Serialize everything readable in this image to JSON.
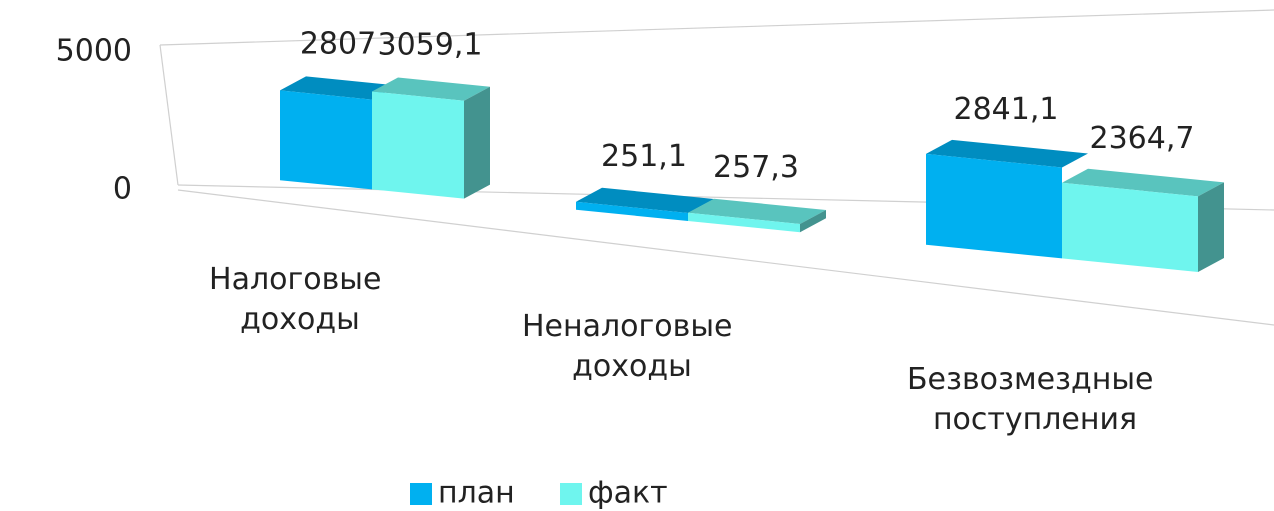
{
  "chart_data": {
    "type": "bar3d",
    "categories": [
      "Налоговые доходы",
      "Неналоговые доходы",
      "Безвозмездные поступления"
    ],
    "series": [
      {
        "name": "план",
        "color": "#00b0f0",
        "values": [
          2807,
          251.1,
          2841.1
        ],
        "value_labels": [
          "2807",
          "251,1",
          "2841,1"
        ]
      },
      {
        "name": "факт",
        "color": "#6ff5ee",
        "values": [
          3059.1,
          257.3,
          2364.7
        ],
        "value_labels": [
          "3059,1",
          "257,3",
          "2364,7"
        ]
      }
    ],
    "ylim": [
      0,
      5000
    ],
    "yticks": [
      0,
      5000
    ],
    "grid": true,
    "legend": "bottom"
  }
}
